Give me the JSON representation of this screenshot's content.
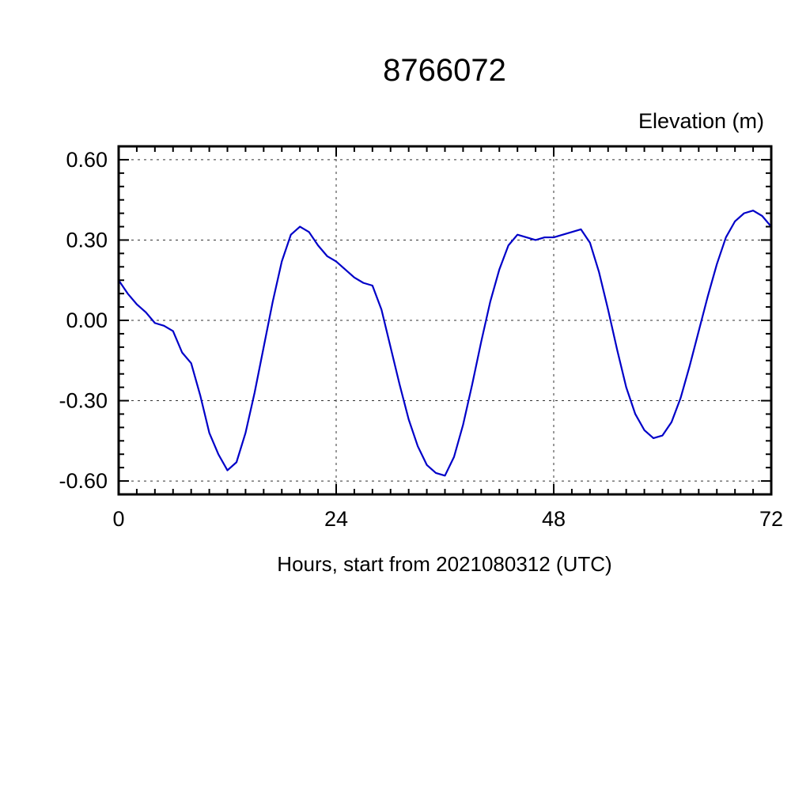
{
  "chart_data": {
    "type": "line",
    "title": "8766072",
    "ylabel": "Elevation (m)",
    "xlabel": "Hours, start from 2021080312 (UTC)",
    "xlim": [
      0,
      72
    ],
    "ylim": [
      -0.65,
      0.65
    ],
    "xticks": [
      0,
      24,
      48,
      72
    ],
    "yticks": [
      0.6,
      0.3,
      0.0,
      -0.3,
      -0.6
    ],
    "x_minor_tick": 2,
    "y_minor_tick": 0.05,
    "grid": true,
    "legend": "none",
    "line_color": "#0000c8",
    "x": [
      0,
      1,
      2,
      3,
      4,
      5,
      6,
      7,
      8,
      9,
      10,
      11,
      12,
      13,
      14,
      15,
      16,
      17,
      18,
      19,
      20,
      21,
      22,
      23,
      24,
      25,
      26,
      27,
      28,
      29,
      30,
      31,
      32,
      33,
      34,
      35,
      36,
      37,
      38,
      39,
      40,
      41,
      42,
      43,
      44,
      45,
      46,
      47,
      48,
      49,
      50,
      51,
      52,
      53,
      54,
      55,
      56,
      57,
      58,
      59,
      60,
      61,
      62,
      63,
      64,
      65,
      66,
      67,
      68,
      69,
      70,
      71,
      72
    ],
    "values": [
      0.15,
      0.1,
      0.06,
      0.03,
      -0.01,
      -0.02,
      -0.04,
      -0.12,
      -0.16,
      -0.28,
      -0.42,
      -0.5,
      -0.56,
      -0.53,
      -0.42,
      -0.27,
      -0.1,
      0.07,
      0.22,
      0.32,
      0.35,
      0.33,
      0.28,
      0.24,
      0.22,
      0.19,
      0.16,
      0.14,
      0.13,
      0.04,
      -0.1,
      -0.24,
      -0.37,
      -0.47,
      -0.54,
      -0.57,
      -0.58,
      -0.51,
      -0.39,
      -0.24,
      -0.08,
      0.07,
      0.19,
      0.28,
      0.32,
      0.31,
      0.3,
      0.31,
      0.31,
      0.32,
      0.33,
      0.34,
      0.29,
      0.18,
      0.04,
      -0.11,
      -0.25,
      -0.35,
      -0.41,
      -0.44,
      -0.43,
      -0.38,
      -0.29,
      -0.17,
      -0.04,
      0.09,
      0.21,
      0.31,
      0.37,
      0.4,
      0.41,
      0.39,
      0.35
    ]
  }
}
